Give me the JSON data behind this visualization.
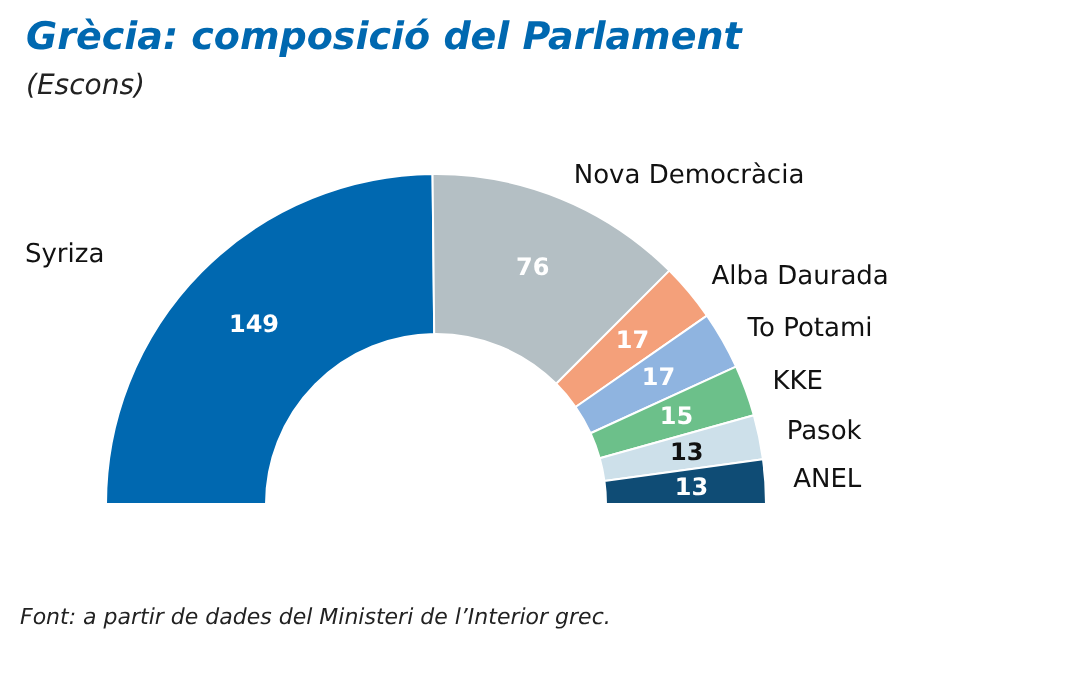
{
  "chart_data": {
    "type": "donut",
    "title": "Grècia: composició del Parlament",
    "subtitle": "(Escons)",
    "categories": [
      "Syriza",
      "Nova Democràcia",
      "Alba Daurada",
      "To Potami",
      "KKE",
      "Pasok",
      "ANEL"
    ],
    "values": [
      149,
      76,
      17,
      17,
      15,
      13,
      13
    ],
    "colors": [
      "#0068b0",
      "#b4bfc4",
      "#f4a07a",
      "#8fb4e0",
      "#6cc08a",
      "#cde0ea",
      "#0f4c75"
    ],
    "data_labels": true,
    "legend": false,
    "annotations": [
      "Font: a partir de dades del Ministeri de l’Interior grec."
    ]
  }
}
